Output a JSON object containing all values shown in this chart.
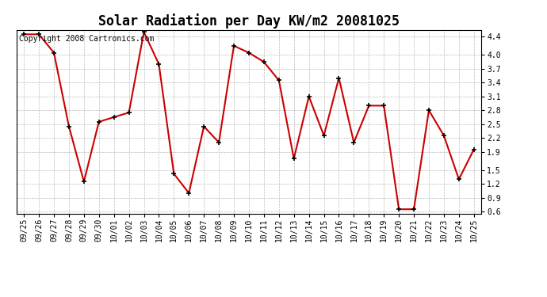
{
  "title": "Solar Radiation per Day KW/m2 20081025",
  "copyright": "Copyright 2008 Cartronics.com",
  "labels": [
    "09/25",
    "09/26",
    "09/27",
    "09/28",
    "09/29",
    "09/30",
    "10/01",
    "10/02",
    "10/03",
    "10/04",
    "10/05",
    "10/06",
    "10/07",
    "10/08",
    "10/09",
    "10/10",
    "10/11",
    "10/12",
    "10/13",
    "10/14",
    "10/15",
    "10/16",
    "10/17",
    "10/18",
    "10/19",
    "10/20",
    "10/21",
    "10/22",
    "10/23",
    "10/24",
    "10/25"
  ],
  "values": [
    4.45,
    4.45,
    4.05,
    2.45,
    1.25,
    2.55,
    2.65,
    2.75,
    4.5,
    3.8,
    1.42,
    1.0,
    2.45,
    2.1,
    4.2,
    4.05,
    3.85,
    3.45,
    1.75,
    3.1,
    2.25,
    3.5,
    2.1,
    2.9,
    2.9,
    0.65,
    0.65,
    2.8,
    2.25,
    1.3,
    1.95
  ],
  "line_color": "#cc0000",
  "background_color": "#ffffff",
  "grid_color": "#bbbbbb",
  "yticks": [
    0.6,
    0.9,
    1.2,
    1.5,
    1.9,
    2.2,
    2.5,
    2.8,
    3.1,
    3.4,
    3.7,
    4.0,
    4.4
  ],
  "ymin": 0.55,
  "ymax": 4.55,
  "title_fontsize": 12,
  "tick_fontsize": 7,
  "copyright_fontsize": 7
}
